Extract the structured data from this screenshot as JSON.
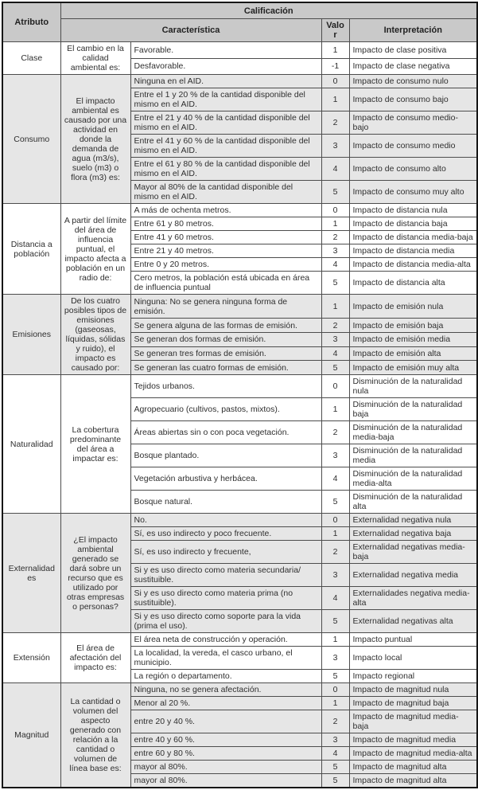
{
  "header": {
    "atributo": "Atributo",
    "calificacion": "Calificación",
    "caracteristica": "Característica",
    "valor": "Valor",
    "interpretacion": "Interpretación"
  },
  "colors": {
    "header_bg": "#c9c9c9",
    "shaded_band_bg": "#e6e6e6",
    "plain_band_bg": "#ffffff",
    "outer_border": "#161616",
    "inner_border": "#4d4d4d",
    "text": "#2f2f2f"
  },
  "groups": [
    {
      "atributo": "Clase",
      "descripcion": "El cambio en la calidad ambiental es:",
      "shaded": false,
      "rows": [
        {
          "caracteristica": "Favorable.",
          "valor": "1",
          "interpretacion": "Impacto de clase positiva"
        },
        {
          "caracteristica": "Desfavorable.",
          "valor": "-1",
          "interpretacion": "Impacto de clase negativa"
        }
      ]
    },
    {
      "atributo": "Consumo",
      "descripcion": "El impacto ambiental es causado por una actividad en donde la demanda de agua (m3/s), suelo (m3) o flora (m3) es:",
      "shaded": true,
      "rows": [
        {
          "caracteristica": "Ninguna en el AID.",
          "valor": "0",
          "interpretacion": "Impacto de consumo nulo"
        },
        {
          "caracteristica": "Entre el 1 y 20 % de la cantidad disponible del mismo en el AID.",
          "valor": "1",
          "interpretacion": "Impacto de consumo bajo"
        },
        {
          "caracteristica": "Entre el 21 y 40 % de la cantidad disponible del mismo en el AID.",
          "valor": "2",
          "interpretacion": "Impacto de consumo medio-bajo"
        },
        {
          "caracteristica": "Entre el 41 y 60 % de la cantidad disponible del mismo en el AID.",
          "valor": "3",
          "interpretacion": "Impacto de consumo medio"
        },
        {
          "caracteristica": "Entre el 61 y 80 % de la cantidad disponible del mismo en el AID.",
          "valor": "4",
          "interpretacion": "Impacto de consumo alto"
        },
        {
          "caracteristica": "Mayor al 80% de la cantidad disponible del mismo en el AID.",
          "valor": "5",
          "interpretacion": "Impacto de consumo muy alto"
        }
      ]
    },
    {
      "atributo": "Distancia a población",
      "descripcion": "A partir del límite del área de influencia puntual, el impacto afecta a población en un radio de:",
      "shaded": false,
      "rows": [
        {
          "caracteristica": "A más de ochenta metros.",
          "valor": "0",
          "interpretacion": "Impacto de distancia nula"
        },
        {
          "caracteristica": "Entre 61 y 80 metros.",
          "valor": "1",
          "interpretacion": "Impacto de distancia baja"
        },
        {
          "caracteristica": "Entre 41 y 60 metros.",
          "valor": "2",
          "interpretacion": "Impacto de distancia media-baja"
        },
        {
          "caracteristica": "Entre 21 y 40 metros.",
          "valor": "3",
          "interpretacion": "Impacto de distancia media"
        },
        {
          "caracteristica": "Entre 0 y 20 metros.",
          "valor": "4",
          "interpretacion": "Impacto de distancia media-alta"
        },
        {
          "caracteristica": "Cero metros, la población está ubicada en área de influencia puntual",
          "valor": "5",
          "interpretacion": "Impacto de distancia alta"
        }
      ]
    },
    {
      "atributo": "Emisiones",
      "descripcion": "De los cuatro posibles tipos de emisiones (gaseosas, líquidas, sólidas y ruido), el impacto es causado por:",
      "shaded": true,
      "rows": [
        {
          "caracteristica": "Ninguna: No se genera ninguna forma de emisión.",
          "valor": "1",
          "interpretacion": "Impacto de emisión nula"
        },
        {
          "caracteristica": "Se genera alguna de las formas de emisión.",
          "valor": "2",
          "interpretacion": "Impacto de emisión baja"
        },
        {
          "caracteristica": "Se generan dos formas de emisión.",
          "valor": "3",
          "interpretacion": "Impacto de emisión media"
        },
        {
          "caracteristica": "Se generan tres formas de emisión.",
          "valor": "4",
          "interpretacion": "Impacto de emisión alta"
        },
        {
          "caracteristica": "Se generan las cuatro formas de emisión.",
          "valor": "5",
          "interpretacion": "Impacto de emisión muy alta"
        }
      ]
    },
    {
      "atributo": "Naturalidad",
      "descripcion": "La cobertura predominante del área a impactar es:",
      "shaded": false,
      "rows": [
        {
          "caracteristica": "Tejidos urbanos.",
          "valor": "0",
          "interpretacion": "Disminución de la naturalidad nula"
        },
        {
          "caracteristica": "Agropecuario (cultivos, pastos, mixtos).",
          "valor": "1",
          "interpretacion": "Disminución de la naturalidad baja"
        },
        {
          "caracteristica": "Áreas abiertas sin o con poca vegetación.",
          "valor": "2",
          "interpretacion": "Disminución de la naturalidad media-baja"
        },
        {
          "caracteristica": "Bosque plantado.",
          "valor": "3",
          "interpretacion": "Disminución de la naturalidad media"
        },
        {
          "caracteristica": "Vegetación arbustiva y herbácea.",
          "valor": "4",
          "interpretacion": "Disminución de la naturalidad media-alta"
        },
        {
          "caracteristica": "Bosque natural.",
          "valor": "5",
          "interpretacion": "Disminución de la naturalidad alta"
        }
      ]
    },
    {
      "atributo": "Externalidades",
      "descripcion": "¿El impacto ambiental generado se dará sobre un recurso que es utilizado por otras empresas o personas?",
      "shaded": true,
      "rows": [
        {
          "caracteristica": "No.",
          "valor": "0",
          "interpretacion": "Externalidad negativa nula"
        },
        {
          "caracteristica": "Sí, es uso indirecto y poco frecuente.",
          "valor": "1",
          "interpretacion": "Externalidad negativa baja"
        },
        {
          "caracteristica": "Sí, es uso indirecto y frecuente,",
          "valor": "2",
          "interpretacion": "Externalidad negativas media-baja"
        },
        {
          "caracteristica": "Si y es uso directo como materia secundaria/ sustituible.",
          "valor": "3",
          "interpretacion": "Externalidad negativa media"
        },
        {
          "caracteristica": "Si y es uso directo como materia prima (no sustituible).",
          "valor": "4",
          "interpretacion": "Externalidades negativa media-alta"
        },
        {
          "caracteristica": "Si y es uso directo como soporte para la vida (prima el uso).",
          "valor": "5",
          "interpretacion": "Externalidad negativas alta"
        }
      ]
    },
    {
      "atributo": "Extensión",
      "descripcion": "El área de afectación del impacto es:",
      "shaded": false,
      "rows": [
        {
          "caracteristica": "El área neta de construcción y operación.",
          "valor": "1",
          "interpretacion": "Impacto puntual"
        },
        {
          "caracteristica": "La localidad, la vereda, el casco urbano, el municipio.",
          "valor": "3",
          "interpretacion": "Impacto local"
        },
        {
          "caracteristica": "La región o departamento.",
          "valor": "5",
          "interpretacion": "Impacto regional"
        }
      ]
    },
    {
      "atributo": "Magnitud",
      "descripcion": "La cantidad o volumen del aspecto generado con relación a la cantidad o volumen de línea base es:",
      "shaded": true,
      "rows": [
        {
          "caracteristica": "Ninguna, no se genera afectación.",
          "valor": "0",
          "interpretacion": "Impacto de magnitud nula"
        },
        {
          "caracteristica": "Menor al 20 %.",
          "valor": "1",
          "interpretacion": "Impacto de magnitud baja"
        },
        {
          "caracteristica": "entre 20 y 40 %.",
          "valor": "2",
          "interpretacion": "Impacto de magnitud media-baja"
        },
        {
          "caracteristica": "entre 40 y 60 %.",
          "valor": "3",
          "interpretacion": "Impacto de magnitud media"
        },
        {
          "caracteristica": "entre 60 y 80 %.",
          "valor": "4",
          "interpretacion": "Impacto de magnitud media-alta"
        },
        {
          "caracteristica": "mayor al 80%.",
          "valor": "5",
          "interpretacion": "Impacto de magnitud alta"
        },
        {
          "caracteristica": "mayor al 80%.",
          "valor": "5",
          "interpretacion": "Impacto de magnitud alta"
        }
      ]
    }
  ]
}
